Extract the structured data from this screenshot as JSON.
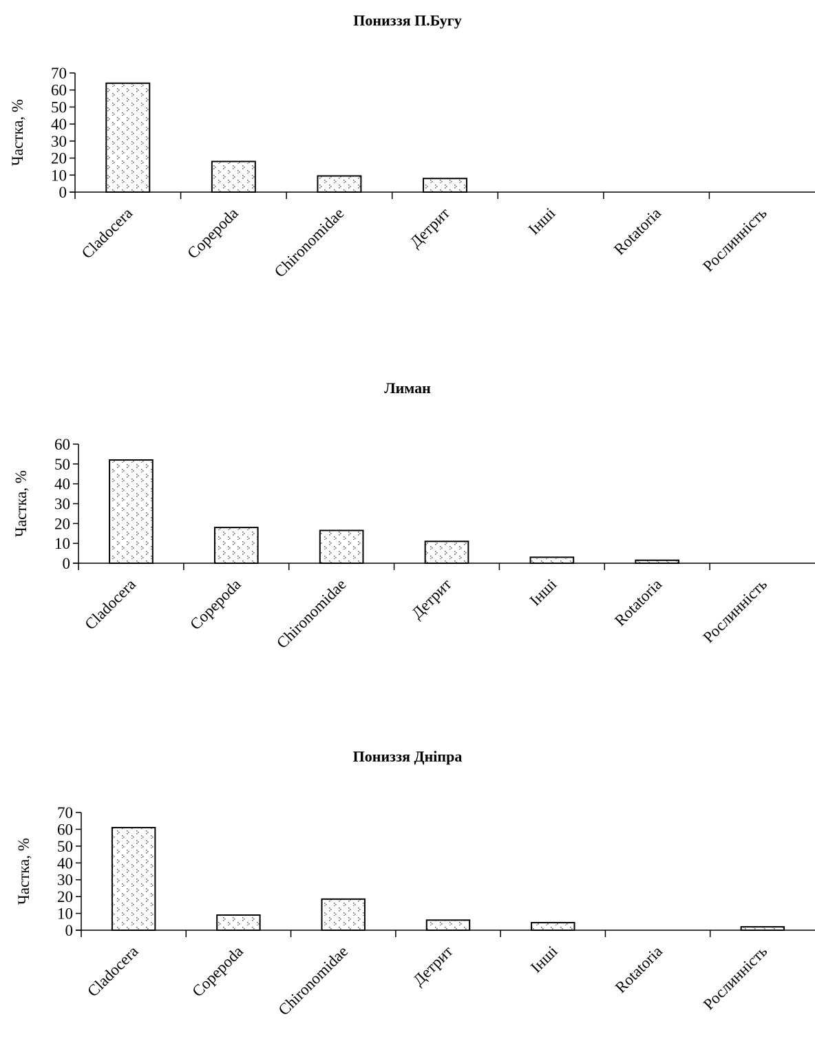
{
  "chart_data": [
    {
      "type": "bar",
      "title": "Пониззя П.Бугу",
      "ylabel": "Частка, %",
      "xlabel": "",
      "ylim": [
        0,
        70
      ],
      "yticks": [
        0,
        10,
        20,
        30,
        40,
        50,
        60,
        70
      ],
      "categories": [
        "Cladocera",
        "Copepoda",
        "Chironomidae",
        "Детрит",
        "Інші",
        "Rotatoria",
        "Рослинність"
      ],
      "values": [
        64,
        18,
        9.5,
        8,
        0,
        0,
        0
      ],
      "grid": false
    },
    {
      "type": "bar",
      "title": "Лиман",
      "ylabel": "Частка, %",
      "xlabel": "",
      "ylim": [
        0,
        60
      ],
      "yticks": [
        0,
        10,
        20,
        30,
        40,
        50,
        60
      ],
      "categories": [
        "Cladocera",
        "Copepoda",
        "Chironomidae",
        "Детрит",
        "Інші",
        "Rotatoria",
        "Рослинність"
      ],
      "values": [
        52,
        18,
        16.5,
        11,
        3,
        1.5,
        0
      ],
      "grid": false
    },
    {
      "type": "bar",
      "title": "Пониззя Дніпра",
      "ylabel": "Частка, %",
      "xlabel": "",
      "ylim": [
        0,
        70
      ],
      "yticks": [
        0,
        10,
        20,
        30,
        40,
        50,
        60,
        70
      ],
      "categories": [
        "Cladocera",
        "Copepoda",
        "Chironomidae",
        "Детрит",
        "Інші",
        "Rotatoria",
        "Рослинність"
      ],
      "values": [
        61,
        9,
        18.5,
        6,
        4.5,
        0,
        2
      ],
      "grid": false
    }
  ]
}
